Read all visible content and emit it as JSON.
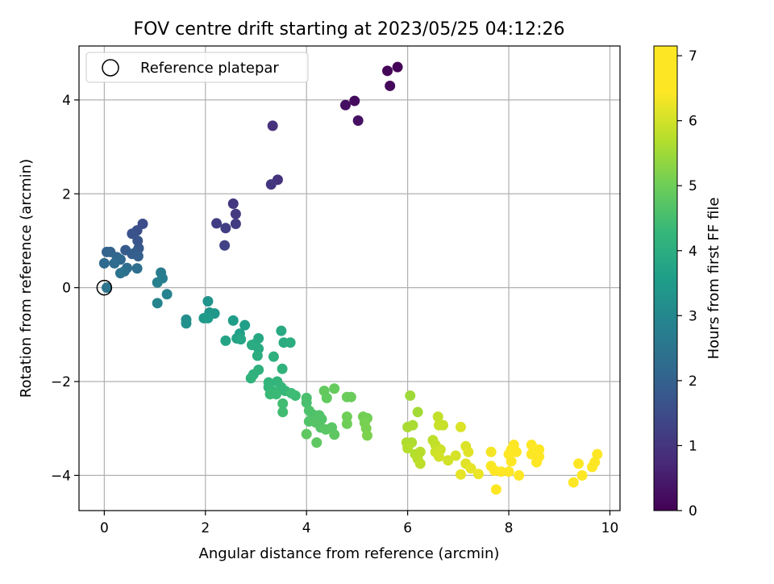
{
  "chart_data": {
    "type": "scatter",
    "title": "FOV centre drift starting at 2023/05/25 04:12:26",
    "xlabel": "Angular distance from reference (arcmin)",
    "ylabel": "Rotation from reference (arcmin)",
    "xlim": [
      -0.5,
      10.2
    ],
    "ylim": [
      -4.75,
      5.15
    ],
    "xticks": [
      0,
      2,
      4,
      6,
      8,
      10
    ],
    "yticks": [
      -4,
      -2,
      0,
      2,
      4
    ],
    "grid": true,
    "legend": {
      "position": "top-left",
      "entries": [
        {
          "label": "Reference platepar",
          "marker": "open-circle"
        }
      ]
    },
    "reference_point": {
      "x": 0,
      "y": 0
    },
    "colorbar": {
      "label": "Hours from first FF file",
      "colormap": "viridis",
      "range": [
        0,
        7.15
      ],
      "ticks": [
        0,
        1,
        2,
        3,
        4,
        5,
        6,
        7
      ]
    },
    "points": [
      {
        "x": 5.8,
        "y": 4.7,
        "c": 0.05
      },
      {
        "x": 5.6,
        "y": 4.62,
        "c": 0.1
      },
      {
        "x": 5.65,
        "y": 4.3,
        "c": 0.15
      },
      {
        "x": 4.95,
        "y": 3.98,
        "c": 0.2
      },
      {
        "x": 4.77,
        "y": 3.89,
        "c": 0.25
      },
      {
        "x": 5.02,
        "y": 3.56,
        "c": 0.3
      },
      {
        "x": 3.33,
        "y": 3.45,
        "c": 0.9
      },
      {
        "x": 3.43,
        "y": 2.3,
        "c": 0.95
      },
      {
        "x": 3.3,
        "y": 2.2,
        "c": 1.0
      },
      {
        "x": 2.55,
        "y": 1.79,
        "c": 1.05
      },
      {
        "x": 2.6,
        "y": 1.57,
        "c": 1.1
      },
      {
        "x": 2.6,
        "y": 1.36,
        "c": 1.15
      },
      {
        "x": 2.22,
        "y": 1.37,
        "c": 1.15
      },
      {
        "x": 2.4,
        "y": 1.27,
        "c": 1.2
      },
      {
        "x": 2.38,
        "y": 0.9,
        "c": 1.25
      },
      {
        "x": 0.76,
        "y": 1.36,
        "c": 1.55
      },
      {
        "x": 0.65,
        "y": 1.22,
        "c": 1.6
      },
      {
        "x": 0.55,
        "y": 1.15,
        "c": 1.65
      },
      {
        "x": 0.66,
        "y": 1.0,
        "c": 1.7
      },
      {
        "x": 0.68,
        "y": 0.84,
        "c": 1.75
      },
      {
        "x": 0.65,
        "y": 0.78,
        "c": 1.8
      },
      {
        "x": 0.42,
        "y": 0.8,
        "c": 1.85
      },
      {
        "x": 0.55,
        "y": 0.72,
        "c": 1.9
      },
      {
        "x": 0.67,
        "y": 0.67,
        "c": 1.95
      },
      {
        "x": 0.05,
        "y": 0.76,
        "c": 2.0
      },
      {
        "x": 0.12,
        "y": 0.76,
        "c": 2.05
      },
      {
        "x": 0.25,
        "y": 0.65,
        "c": 2.1
      },
      {
        "x": 0.32,
        "y": 0.6,
        "c": 2.15
      },
      {
        "x": 0.0,
        "y": 0.52,
        "c": 2.2
      },
      {
        "x": 0.2,
        "y": 0.52,
        "c": 2.25
      },
      {
        "x": 0.45,
        "y": 0.42,
        "c": 2.3
      },
      {
        "x": 0.65,
        "y": 0.41,
        "c": 2.35
      },
      {
        "x": 0.4,
        "y": 0.35,
        "c": 2.4
      },
      {
        "x": 0.32,
        "y": 0.31,
        "c": 2.45
      },
      {
        "x": 0.05,
        "y": 0.0,
        "c": 2.5
      },
      {
        "x": 1.12,
        "y": 0.32,
        "c": 2.7
      },
      {
        "x": 1.15,
        "y": 0.2,
        "c": 2.75
      },
      {
        "x": 1.05,
        "y": 0.11,
        "c": 2.8
      },
      {
        "x": 1.24,
        "y": -0.14,
        "c": 2.85
      },
      {
        "x": 1.05,
        "y": -0.33,
        "c": 2.9
      },
      {
        "x": 1.62,
        "y": -0.68,
        "c": 3.2
      },
      {
        "x": 1.62,
        "y": -0.76,
        "c": 3.25
      },
      {
        "x": 2.05,
        "y": -0.29,
        "c": 3.3
      },
      {
        "x": 2.08,
        "y": -0.53,
        "c": 3.35
      },
      {
        "x": 2.18,
        "y": -0.55,
        "c": 3.4
      },
      {
        "x": 1.97,
        "y": -0.65,
        "c": 3.45
      },
      {
        "x": 2.05,
        "y": -0.65,
        "c": 3.5
      },
      {
        "x": 2.55,
        "y": -0.7,
        "c": 3.55
      },
      {
        "x": 2.78,
        "y": -0.8,
        "c": 3.6
      },
      {
        "x": 2.68,
        "y": -0.98,
        "c": 3.65
      },
      {
        "x": 2.62,
        "y": -1.08,
        "c": 3.7
      },
      {
        "x": 2.4,
        "y": -1.13,
        "c": 3.75
      },
      {
        "x": 2.7,
        "y": -1.1,
        "c": 3.8
      },
      {
        "x": 3.05,
        "y": -1.08,
        "c": 3.85
      },
      {
        "x": 2.98,
        "y": -1.2,
        "c": 3.9
      },
      {
        "x": 2.92,
        "y": -1.22,
        "c": 3.95
      },
      {
        "x": 3.05,
        "y": -1.3,
        "c": 3.95
      },
      {
        "x": 3.03,
        "y": -1.45,
        "c": 4.0
      },
      {
        "x": 3.5,
        "y": -0.92,
        "c": 3.9
      },
      {
        "x": 3.55,
        "y": -1.17,
        "c": 3.95
      },
      {
        "x": 3.68,
        "y": -1.17,
        "c": 4.0
      },
      {
        "x": 3.35,
        "y": -1.47,
        "c": 4.05
      },
      {
        "x": 3.05,
        "y": -1.75,
        "c": 4.1
      },
      {
        "x": 2.95,
        "y": -1.85,
        "c": 4.1
      },
      {
        "x": 2.9,
        "y": -1.93,
        "c": 4.15
      },
      {
        "x": 3.52,
        "y": -1.73,
        "c": 4.15
      },
      {
        "x": 3.25,
        "y": -2.02,
        "c": 4.2
      },
      {
        "x": 3.42,
        "y": -2.0,
        "c": 4.2
      },
      {
        "x": 3.25,
        "y": -2.12,
        "c": 4.25
      },
      {
        "x": 3.32,
        "y": -2.2,
        "c": 4.25
      },
      {
        "x": 3.5,
        "y": -2.12,
        "c": 4.3
      },
      {
        "x": 3.58,
        "y": -2.2,
        "c": 4.3
      },
      {
        "x": 3.28,
        "y": -2.27,
        "c": 4.35
      },
      {
        "x": 3.4,
        "y": -2.27,
        "c": 4.35
      },
      {
        "x": 3.7,
        "y": -2.25,
        "c": 4.4
      },
      {
        "x": 3.78,
        "y": -2.3,
        "c": 4.4
      },
      {
        "x": 3.53,
        "y": -2.47,
        "c": 4.45
      },
      {
        "x": 3.53,
        "y": -2.65,
        "c": 4.45
      },
      {
        "x": 4.0,
        "y": -2.35,
        "c": 4.55
      },
      {
        "x": 4.0,
        "y": -2.45,
        "c": 4.55
      },
      {
        "x": 4.05,
        "y": -2.62,
        "c": 4.6
      },
      {
        "x": 4.12,
        "y": -2.7,
        "c": 4.6
      },
      {
        "x": 4.25,
        "y": -2.72,
        "c": 4.65
      },
      {
        "x": 4.3,
        "y": -2.8,
        "c": 4.65
      },
      {
        "x": 4.05,
        "y": -2.85,
        "c": 4.65
      },
      {
        "x": 4.18,
        "y": -2.87,
        "c": 4.7
      },
      {
        "x": 4.28,
        "y": -2.98,
        "c": 4.7
      },
      {
        "x": 4.38,
        "y": -3.02,
        "c": 4.75
      },
      {
        "x": 4.5,
        "y": -2.98,
        "c": 4.75
      },
      {
        "x": 4.55,
        "y": -3.13,
        "c": 4.8
      },
      {
        "x": 4.0,
        "y": -3.12,
        "c": 4.8
      },
      {
        "x": 4.2,
        "y": -3.3,
        "c": 4.8
      },
      {
        "x": 4.35,
        "y": -2.2,
        "c": 4.85
      },
      {
        "x": 4.4,
        "y": -2.35,
        "c": 4.85
      },
      {
        "x": 4.55,
        "y": -2.15,
        "c": 4.9
      },
      {
        "x": 4.8,
        "y": -2.33,
        "c": 4.95
      },
      {
        "x": 4.88,
        "y": -2.33,
        "c": 4.95
      },
      {
        "x": 4.8,
        "y": -2.75,
        "c": 5.0
      },
      {
        "x": 4.8,
        "y": -2.9,
        "c": 5.0
      },
      {
        "x": 5.12,
        "y": -2.75,
        "c": 5.05
      },
      {
        "x": 5.2,
        "y": -2.78,
        "c": 5.05
      },
      {
        "x": 5.15,
        "y": -2.88,
        "c": 5.1
      },
      {
        "x": 5.18,
        "y": -3.0,
        "c": 5.1
      },
      {
        "x": 5.2,
        "y": -3.15,
        "c": 5.15
      },
      {
        "x": 6.05,
        "y": -2.3,
        "c": 5.5
      },
      {
        "x": 6.2,
        "y": -2.65,
        "c": 5.55
      },
      {
        "x": 6.0,
        "y": -2.97,
        "c": 5.6
      },
      {
        "x": 6.1,
        "y": -2.93,
        "c": 5.6
      },
      {
        "x": 5.98,
        "y": -3.3,
        "c": 5.65
      },
      {
        "x": 6.08,
        "y": -3.3,
        "c": 5.65
      },
      {
        "x": 6.0,
        "y": -3.42,
        "c": 5.7
      },
      {
        "x": 6.15,
        "y": -3.55,
        "c": 5.7
      },
      {
        "x": 6.25,
        "y": -3.5,
        "c": 5.75
      },
      {
        "x": 6.2,
        "y": -3.65,
        "c": 5.75
      },
      {
        "x": 6.25,
        "y": -3.75,
        "c": 5.8
      },
      {
        "x": 6.5,
        "y": -3.25,
        "c": 5.8
      },
      {
        "x": 6.55,
        "y": -3.35,
        "c": 5.85
      },
      {
        "x": 6.6,
        "y": -2.75,
        "c": 5.85
      },
      {
        "x": 6.62,
        "y": -2.93,
        "c": 5.9
      },
      {
        "x": 6.7,
        "y": -2.93,
        "c": 5.9
      },
      {
        "x": 6.55,
        "y": -3.5,
        "c": 5.95
      },
      {
        "x": 6.65,
        "y": -3.45,
        "c": 5.95
      },
      {
        "x": 6.62,
        "y": -3.6,
        "c": 6.0
      },
      {
        "x": 6.8,
        "y": -3.68,
        "c": 6.0
      },
      {
        "x": 6.95,
        "y": -3.58,
        "c": 6.05
      },
      {
        "x": 7.05,
        "y": -2.97,
        "c": 6.1
      },
      {
        "x": 7.15,
        "y": -3.38,
        "c": 6.1
      },
      {
        "x": 7.2,
        "y": -3.5,
        "c": 6.15
      },
      {
        "x": 7.15,
        "y": -3.75,
        "c": 6.15
      },
      {
        "x": 7.25,
        "y": -3.85,
        "c": 6.2
      },
      {
        "x": 7.05,
        "y": -3.98,
        "c": 6.2
      },
      {
        "x": 7.4,
        "y": -3.97,
        "c": 6.25
      },
      {
        "x": 7.65,
        "y": -3.5,
        "c": 6.35
      },
      {
        "x": 7.65,
        "y": -3.8,
        "c": 6.4
      },
      {
        "x": 7.72,
        "y": -3.9,
        "c": 6.45
      },
      {
        "x": 7.75,
        "y": -4.3,
        "c": 6.45
      },
      {
        "x": 7.85,
        "y": -3.92,
        "c": 6.5
      },
      {
        "x": 8.0,
        "y": -3.55,
        "c": 6.55
      },
      {
        "x": 8.05,
        "y": -3.45,
        "c": 6.55
      },
      {
        "x": 8.1,
        "y": -3.35,
        "c": 6.6
      },
      {
        "x": 8.15,
        "y": -3.5,
        "c": 6.6
      },
      {
        "x": 8.05,
        "y": -3.7,
        "c": 6.65
      },
      {
        "x": 8.0,
        "y": -3.92,
        "c": 6.65
      },
      {
        "x": 8.2,
        "y": -4.0,
        "c": 6.7
      },
      {
        "x": 8.45,
        "y": -3.35,
        "c": 6.7
      },
      {
        "x": 8.5,
        "y": -3.45,
        "c": 6.75
      },
      {
        "x": 8.6,
        "y": -3.45,
        "c": 6.75
      },
      {
        "x": 8.45,
        "y": -3.55,
        "c": 6.8
      },
      {
        "x": 8.6,
        "y": -3.6,
        "c": 6.8
      },
      {
        "x": 8.55,
        "y": -3.72,
        "c": 6.85
      },
      {
        "x": 9.75,
        "y": -3.55,
        "c": 7.0
      },
      {
        "x": 9.7,
        "y": -3.72,
        "c": 7.05
      },
      {
        "x": 9.65,
        "y": -3.82,
        "c": 7.05
      },
      {
        "x": 9.38,
        "y": -3.75,
        "c": 7.05
      },
      {
        "x": 9.45,
        "y": -4.0,
        "c": 7.1
      },
      {
        "x": 9.28,
        "y": -4.15,
        "c": 7.1
      }
    ]
  }
}
